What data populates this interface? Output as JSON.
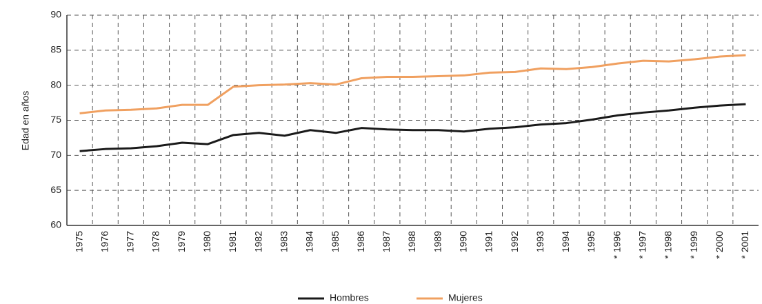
{
  "chart_data": {
    "type": "line",
    "ylabel": "Edad en años",
    "categories": [
      "1975",
      "1976",
      "1977",
      "1978",
      "1979",
      "1980",
      "1981",
      "1982",
      "1983",
      "1984",
      "1985",
      "1986",
      "1987",
      "1988",
      "1989",
      "1990",
      "1991",
      "1992",
      "1993",
      "1994",
      "1995",
      "* 1996",
      "* 1997",
      "* 1998",
      "* 1999",
      "* 2000",
      "* 2001"
    ],
    "series": [
      {
        "name": "Hombres",
        "color": "#1a1a1a",
        "values": [
          70.6,
          70.9,
          71.0,
          71.3,
          71.8,
          71.6,
          72.9,
          73.2,
          72.8,
          73.6,
          73.2,
          73.9,
          73.7,
          73.6,
          73.6,
          73.4,
          73.8,
          74.0,
          74.4,
          74.6,
          75.1,
          75.7,
          76.1,
          76.4,
          76.8,
          77.1,
          77.3
        ]
      },
      {
        "name": "Mujeres",
        "color": "#f0a060",
        "values": [
          76.0,
          76.4,
          76.5,
          76.7,
          77.2,
          77.2,
          79.8,
          80.0,
          80.1,
          80.3,
          80.1,
          81.0,
          81.2,
          81.2,
          81.3,
          81.4,
          81.8,
          81.9,
          82.4,
          82.3,
          82.6,
          83.1,
          83.5,
          83.4,
          83.7,
          84.1,
          84.3
        ]
      }
    ],
    "ylim": [
      60,
      90
    ],
    "yticks": [
      60,
      65,
      70,
      75,
      80,
      85,
      90
    ],
    "grid": true,
    "legend": "bottom"
  }
}
